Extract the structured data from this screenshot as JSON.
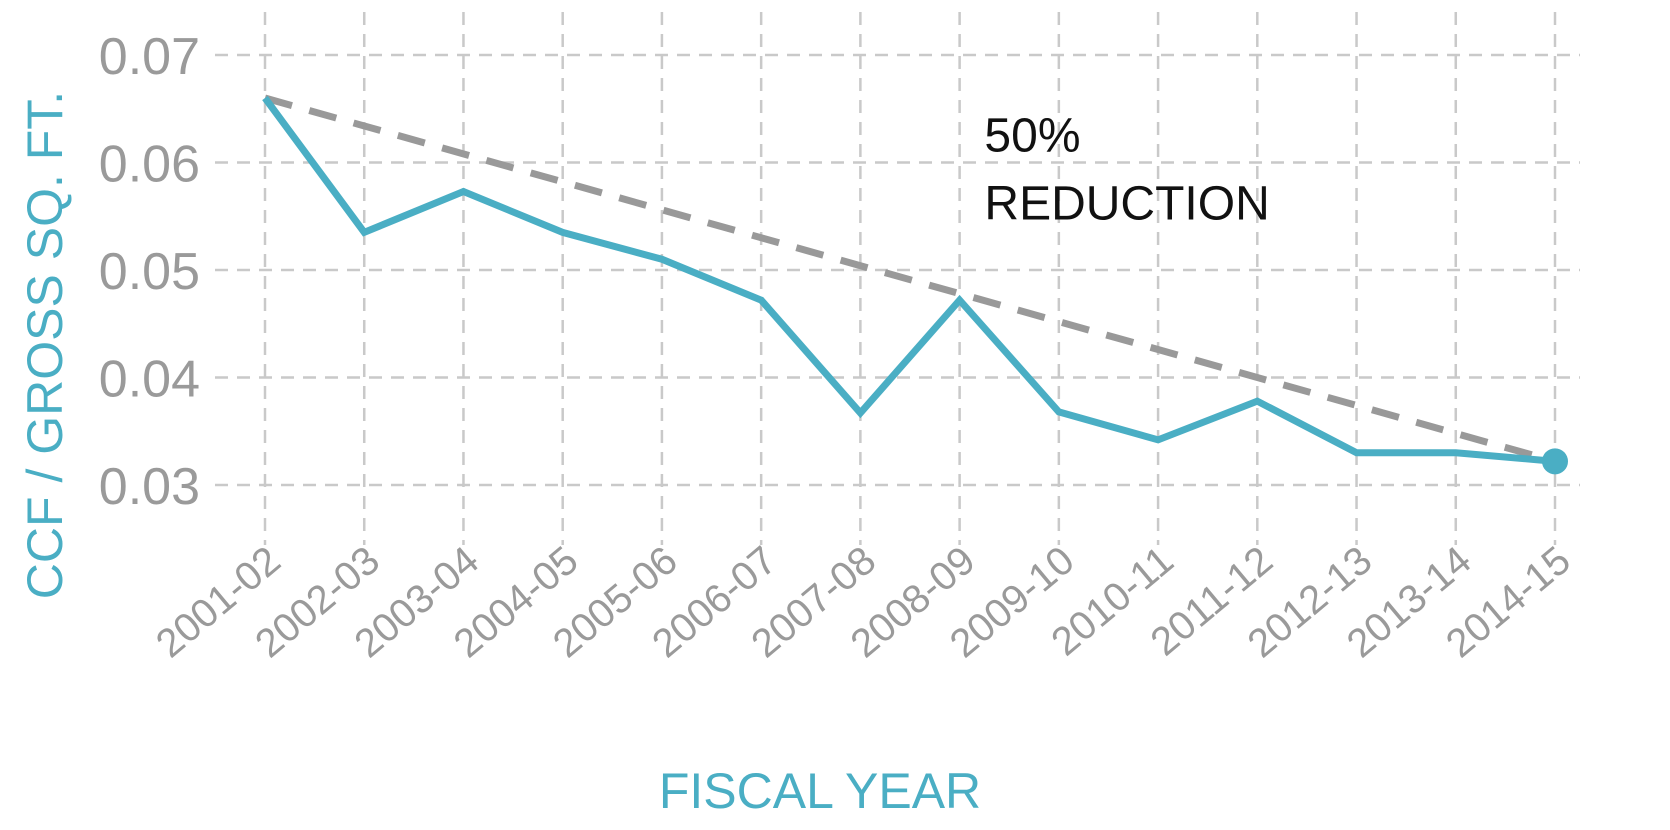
{
  "chart_data": {
    "type": "line",
    "x": [
      "2001-02",
      "2002-03",
      "2003-04",
      "2004-05",
      "2005-06",
      "2006-07",
      "2007-08",
      "2008-09",
      "2009-10",
      "2010-11",
      "2011-12",
      "2012-13",
      "2013-14",
      "2014-15"
    ],
    "series": [
      {
        "values": [
          0.066,
          0.0535,
          0.0573,
          0.0535,
          0.051,
          0.0472,
          0.0367,
          0.0472,
          0.0368,
          0.0342,
          0.0378,
          0.033,
          0.033,
          0.0322
        ],
        "color": "#4aaec4"
      }
    ],
    "trend_line": {
      "from": [
        0,
        0.066
      ],
      "to": [
        13,
        0.0322
      ],
      "color": "#999999",
      "style": "dashed"
    },
    "xlabel": "FISCAL YEAR",
    "ylabel": "CCF / GROSS SQ. FT.",
    "yticks": [
      0.03,
      0.04,
      0.05,
      0.06,
      0.07
    ],
    "ytick_labels": [
      "0.03",
      "0.04",
      "0.05",
      "0.06",
      "0.07"
    ],
    "ylim": [
      0.027,
      0.074
    ],
    "grid": true,
    "annotation": {
      "lines": [
        "50%",
        "REDUCTION"
      ],
      "x_index": 7.25,
      "y_value": 0.0575
    }
  }
}
